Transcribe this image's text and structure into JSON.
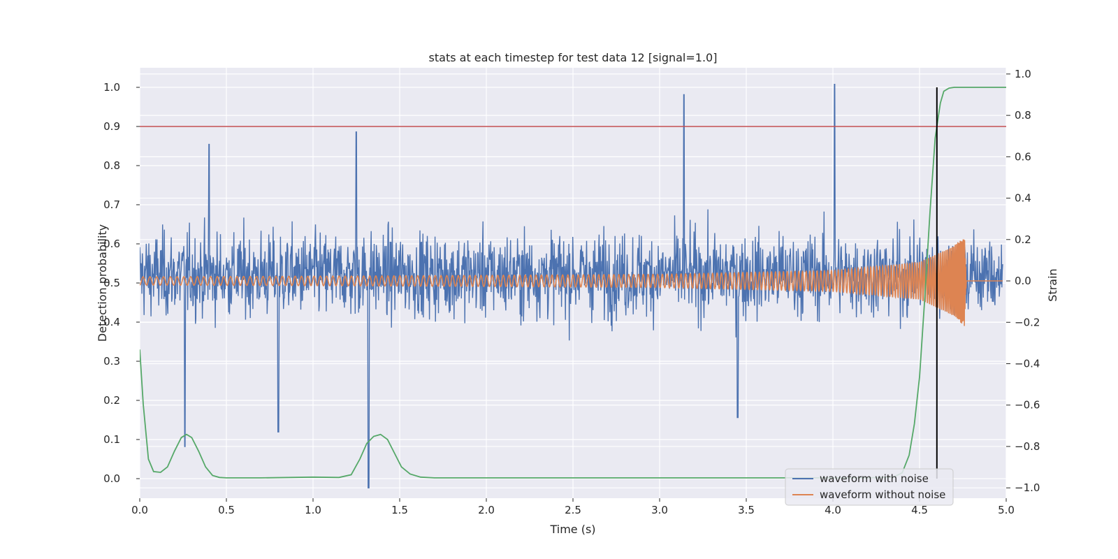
{
  "chart_data": {
    "type": "line",
    "title": "stats at each timestep for test data 12 [signal=1.0]",
    "xlabel": "Time (s)",
    "ylabel": "Detection probability",
    "y2label": "Strain",
    "xlim": [
      0.0,
      5.0
    ],
    "ylim": [
      -0.05,
      1.05
    ],
    "y2lim": [
      -1.05,
      1.03
    ],
    "grid": true,
    "legend_position": "lower-right",
    "x_ticks": [
      "0.0",
      "0.5",
      "1.0",
      "1.5",
      "2.0",
      "2.5",
      "3.0",
      "3.5",
      "4.0",
      "4.5",
      "5.0"
    ],
    "y_ticks": [
      "0.0",
      "0.1",
      "0.2",
      "0.3",
      "0.4",
      "0.5",
      "0.6",
      "0.7",
      "0.8",
      "0.9",
      "1.0"
    ],
    "y2_ticks": [
      "−1.0",
      "−0.8",
      "−0.6",
      "−0.4",
      "−0.2",
      "0.0",
      "0.2",
      "0.4",
      "0.6",
      "0.8",
      "1.0"
    ],
    "threshold": {
      "y": 0.9,
      "color": "#c44e52"
    },
    "marker_line": {
      "x": 4.6,
      "y_from": 0.0,
      "y_to": 1.0,
      "color": "#000000"
    },
    "series": [
      {
        "name": "waveform with noise",
        "axis": "right",
        "color": "#4c72b0",
        "sample_count": 2000,
        "typical_range": [
          -0.4,
          0.5
        ],
        "peaks": [
          [
            0.4,
            0.66
          ],
          [
            1.25,
            0.72
          ],
          [
            3.14,
            0.9
          ],
          [
            4.01,
            0.95
          ]
        ],
        "troughs": [
          [
            0.26,
            -0.8
          ],
          [
            0.8,
            -0.73
          ],
          [
            1.32,
            -1.0
          ],
          [
            3.45,
            -0.66
          ]
        ]
      },
      {
        "name": "waveform without noise",
        "axis": "right",
        "color": "#dd8452",
        "description_points": {
          "x": [
            0.0,
            1.0,
            2.0,
            3.0,
            4.0,
            4.5,
            4.7,
            4.76,
            4.77,
            5.0
          ],
          "amplitude": [
            0.02,
            0.023,
            0.027,
            0.032,
            0.05,
            0.09,
            0.17,
            0.22,
            0.0,
            0.0
          ]
        }
      },
      {
        "color": "#55a868",
        "axis": "left",
        "x": [
          0.0,
          0.02,
          0.05,
          0.08,
          0.12,
          0.16,
          0.2,
          0.24,
          0.27,
          0.3,
          0.34,
          0.38,
          0.42,
          0.46,
          0.5,
          0.7,
          1.0,
          1.15,
          1.22,
          1.27,
          1.31,
          1.35,
          1.39,
          1.43,
          1.47,
          1.51,
          1.56,
          1.62,
          1.7,
          1.8,
          2.0,
          3.0,
          4.0,
          4.2,
          4.35,
          4.4,
          4.44,
          4.47,
          4.5,
          4.53,
          4.56,
          4.59,
          4.62,
          4.64,
          4.67,
          4.7,
          4.75,
          5.0
        ],
        "values": [
          0.33,
          0.19,
          0.05,
          0.018,
          0.016,
          0.03,
          0.07,
          0.105,
          0.113,
          0.105,
          0.07,
          0.03,
          0.008,
          0.003,
          0.002,
          0.002,
          0.004,
          0.003,
          0.01,
          0.05,
          0.09,
          0.108,
          0.113,
          0.1,
          0.065,
          0.03,
          0.012,
          0.004,
          0.002,
          0.002,
          0.002,
          0.002,
          0.002,
          0.002,
          0.004,
          0.015,
          0.06,
          0.14,
          0.26,
          0.46,
          0.68,
          0.87,
          0.96,
          0.99,
          0.998,
          1.0,
          1.0,
          1.0
        ]
      }
    ]
  }
}
